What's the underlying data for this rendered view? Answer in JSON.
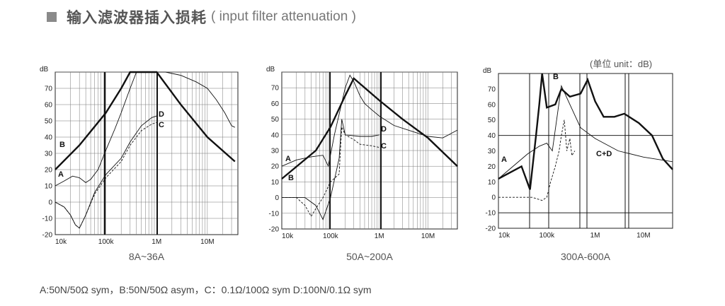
{
  "header": {
    "title_cn": "输入滤波器插入损耗",
    "title_en": "( input filter attenuation )"
  },
  "unit_note": "(单位 unit：dB)",
  "legend_text": "A:50N/50Ω sym，B:50N/50Ω asym，C：0.1Ω/100Ω sym D:100N/0.1Ω sym",
  "chart_data": [
    {
      "type": "line",
      "caption": "8A~36A",
      "ylabel": "dB",
      "xscale": "log",
      "xlim": [
        10000,
        40000000
      ],
      "ylim": [
        -20,
        80
      ],
      "y_ticks": [
        -20,
        -10,
        0,
        10,
        20,
        30,
        40,
        50,
        60,
        70
      ],
      "x_ticks": [
        {
          "value": 10000,
          "label": "10k"
        },
        {
          "value": 100000,
          "label": "100k"
        },
        {
          "value": 1000000,
          "label": "1M"
        },
        {
          "value": 10000000,
          "label": "10M"
        }
      ],
      "series": [
        {
          "name": "A",
          "style": "thin",
          "points": [
            [
              10000,
              10
            ],
            [
              15000,
              13
            ],
            [
              22000,
              16
            ],
            [
              30000,
              15
            ],
            [
              40000,
              12
            ],
            [
              50000,
              14
            ],
            [
              70000,
              20
            ],
            [
              100000,
              32
            ],
            [
              150000,
              45
            ],
            [
              200000,
              55
            ],
            [
              300000,
              70
            ],
            [
              400000,
              80
            ],
            [
              800000,
              80
            ],
            [
              1500000,
              80
            ],
            [
              3000000,
              78
            ],
            [
              6000000,
              74
            ],
            [
              10000000,
              70
            ],
            [
              15000000,
              63
            ],
            [
              22000000,
              55
            ],
            [
              30000000,
              47
            ],
            [
              35000000,
              46
            ]
          ]
        },
        {
          "name": "B",
          "style": "thick",
          "points": [
            [
              10000,
              20
            ],
            [
              30000,
              35
            ],
            [
              100000,
              55
            ],
            [
              200000,
              70
            ],
            [
              300000,
              80
            ],
            [
              1000000,
              80
            ],
            [
              3000000,
              60
            ],
            [
              10000000,
              40
            ],
            [
              35000000,
              25
            ]
          ]
        },
        {
          "name": "C",
          "style": "dashed",
          "points": [
            [
              10000,
              0
            ],
            [
              15000,
              -3
            ],
            [
              20000,
              -8
            ],
            [
              25000,
              -14
            ],
            [
              30000,
              -16
            ],
            [
              40000,
              -8
            ],
            [
              60000,
              5
            ],
            [
              100000,
              15
            ],
            [
              200000,
              25
            ],
            [
              300000,
              35
            ],
            [
              500000,
              44
            ],
            [
              800000,
              48
            ],
            [
              1000000,
              49
            ]
          ]
        },
        {
          "name": "D",
          "style": "thin",
          "points": [
            [
              10000,
              0
            ],
            [
              15000,
              -3
            ],
            [
              20000,
              -8
            ],
            [
              25000,
              -14
            ],
            [
              30000,
              -16
            ],
            [
              40000,
              -8
            ],
            [
              60000,
              6
            ],
            [
              100000,
              17
            ],
            [
              200000,
              27
            ],
            [
              300000,
              37
            ],
            [
              500000,
              47
            ],
            [
              800000,
              52
            ],
            [
              1000000,
              53
            ]
          ]
        }
      ]
    },
    {
      "type": "line",
      "caption": "50A~200A",
      "ylabel": "dB",
      "xscale": "log",
      "xlim": [
        10000,
        40000000
      ],
      "ylim": [
        -20,
        80
      ],
      "y_ticks": [
        -20,
        -10,
        0,
        10,
        20,
        30,
        40,
        50,
        60,
        70
      ],
      "x_ticks": [
        {
          "value": 10000,
          "label": "10k"
        },
        {
          "value": 100000,
          "label": "100k"
        },
        {
          "value": 1000000,
          "label": "1M"
        },
        {
          "value": 10000000,
          "label": "10M"
        }
      ],
      "series": [
        {
          "name": "A",
          "style": "thin",
          "points": [
            [
              10000,
              20
            ],
            [
              20000,
              24
            ],
            [
              40000,
              26
            ],
            [
              70000,
              27
            ],
            [
              90000,
              20
            ],
            [
              120000,
              40
            ],
            [
              200000,
              70
            ],
            [
              250000,
              78
            ],
            [
              300000,
              74
            ],
            [
              400000,
              65
            ],
            [
              500000,
              60
            ],
            [
              700000,
              56
            ],
            [
              1000000,
              52
            ],
            [
              2000000,
              46
            ],
            [
              5000000,
              42
            ],
            [
              10000000,
              39
            ],
            [
              20000000,
              38
            ],
            [
              40000000,
              43
            ]
          ]
        },
        {
          "name": "B",
          "style": "thick",
          "points": [
            [
              10000,
              12
            ],
            [
              50000,
              30
            ],
            [
              100000,
              45
            ],
            [
              200000,
              65
            ],
            [
              300000,
              76
            ],
            [
              1000000,
              62
            ],
            [
              3000000,
              50
            ],
            [
              10000000,
              38
            ],
            [
              40000000,
              20
            ]
          ]
        },
        {
          "name": "C",
          "style": "dashed",
          "points": [
            [
              10000,
              0
            ],
            [
              20000,
              0
            ],
            [
              30000,
              -5
            ],
            [
              40000,
              -12
            ],
            [
              50000,
              -7
            ],
            [
              70000,
              0
            ],
            [
              100000,
              10
            ],
            [
              150000,
              15
            ],
            [
              170000,
              45
            ],
            [
              200000,
              40
            ],
            [
              300000,
              37
            ],
            [
              400000,
              34
            ],
            [
              700000,
              33
            ],
            [
              1000000,
              32
            ]
          ]
        },
        {
          "name": "D",
          "style": "thin",
          "points": [
            [
              10000,
              0
            ],
            [
              30000,
              0
            ],
            [
              50000,
              -5
            ],
            [
              70000,
              -14
            ],
            [
              100000,
              0
            ],
            [
              150000,
              25
            ],
            [
              170000,
              50
            ],
            [
              200000,
              40
            ],
            [
              400000,
              39
            ],
            [
              700000,
              39
            ],
            [
              1000000,
              40
            ]
          ]
        }
      ]
    },
    {
      "type": "line",
      "caption": "300A-600A",
      "ylabel": "dB",
      "xscale": "log",
      "xlim": [
        10000,
        40000000
      ],
      "ylim": [
        -20,
        80
      ],
      "y_ticks": [
        -20,
        -10,
        0,
        10,
        20,
        30,
        40,
        50,
        60,
        70
      ],
      "x_ticks": [
        {
          "value": 10000,
          "label": "10k"
        },
        {
          "value": 100000,
          "label": "100k"
        },
        {
          "value": 1000000,
          "label": "1M"
        },
        {
          "value": 10000000,
          "label": "10M"
        }
      ],
      "series": [
        {
          "name": "A",
          "style": "thin",
          "points": [
            [
              10000,
              12
            ],
            [
              20000,
              20
            ],
            [
              40000,
              28
            ],
            [
              70000,
              33
            ],
            [
              100000,
              35
            ],
            [
              130000,
              30
            ],
            [
              200000,
              72
            ],
            [
              300000,
              60
            ],
            [
              500000,
              45
            ],
            [
              1000000,
              38
            ],
            [
              3000000,
              30
            ],
            [
              10000000,
              26
            ],
            [
              40000000,
              23
            ]
          ]
        },
        {
          "name": "B",
          "style": "thick",
          "points": [
            [
              10000,
              12
            ],
            [
              30000,
              20
            ],
            [
              45000,
              5
            ],
            [
              60000,
              40
            ],
            [
              70000,
              60
            ],
            [
              80000,
              80
            ],
            [
              100000,
              58
            ],
            [
              150000,
              60
            ],
            [
              200000,
              70
            ],
            [
              300000,
              65
            ],
            [
              500000,
              67
            ],
            [
              700000,
              76
            ],
            [
              1000000,
              62
            ],
            [
              1500000,
              52
            ],
            [
              2500000,
              52
            ],
            [
              4000000,
              54
            ],
            [
              8000000,
              48
            ],
            [
              15000000,
              40
            ],
            [
              25000000,
              25
            ],
            [
              40000000,
              18
            ]
          ]
        },
        {
          "name": "C+D",
          "style": "dashed",
          "points": [
            [
              10000,
              0
            ],
            [
              30000,
              0
            ],
            [
              50000,
              0
            ],
            [
              80000,
              -2
            ],
            [
              100000,
              0
            ],
            [
              120000,
              10
            ],
            [
              150000,
              20
            ],
            [
              180000,
              30
            ],
            [
              200000,
              40
            ],
            [
              230000,
              50
            ],
            [
              260000,
              30
            ],
            [
              300000,
              38
            ],
            [
              330000,
              27
            ],
            [
              380000,
              30
            ]
          ]
        }
      ]
    }
  ]
}
